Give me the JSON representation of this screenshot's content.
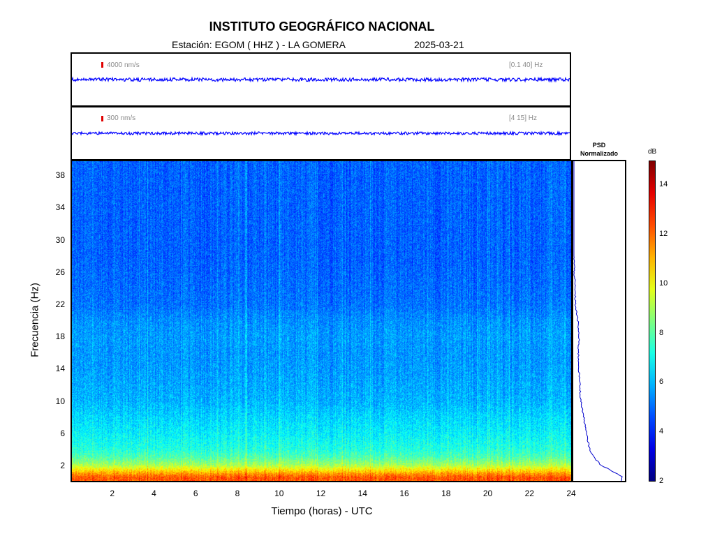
{
  "header": {
    "institution": "INSTITUTO GEOGRÁFICO NACIONAL",
    "station": "Estación:  EGOM ( HHZ ) - LA GOMERA",
    "date": "2025-03-21"
  },
  "traces": [
    {
      "scale_label": "4000 nm/s",
      "band_label": "[0.1 40] Hz",
      "color": "#0000ff"
    },
    {
      "scale_label": "300 nm/s",
      "band_label": "[4 15] Hz",
      "color": "#0000ff"
    }
  ],
  "psd": {
    "title_line1": "PSD",
    "title_line2": "Normalizado"
  },
  "colorbar": {
    "unit": "dB",
    "ticks": [
      "2",
      "4",
      "6",
      "8",
      "10",
      "12",
      "14"
    ],
    "colormap": "jet"
  },
  "chart_data": {
    "type": "heatmap",
    "title": "INSTITUTO GEOGRÁFICO NACIONAL",
    "xlabel": "Tiempo (horas) - UTC",
    "ylabel": "Frecuencia  (Hz)",
    "xlim": [
      0,
      24
    ],
    "ylim": [
      0,
      40
    ],
    "x_ticks": [
      "2",
      "4",
      "6",
      "8",
      "10",
      "12",
      "14",
      "16",
      "18",
      "20",
      "22",
      "24"
    ],
    "y_ticks": [
      "2",
      "6",
      "10",
      "14",
      "18",
      "22",
      "26",
      "30",
      "34",
      "38"
    ],
    "color_range_db": [
      2,
      15
    ],
    "psd_profile": {
      "frequency_hz": [
        0.5,
        1,
        2,
        3,
        4,
        6,
        8,
        10,
        12,
        14,
        16,
        18,
        20,
        22,
        24,
        26,
        28,
        30,
        32,
        34,
        36,
        38,
        40
      ],
      "normalized_power": [
        0.98,
        0.85,
        0.55,
        0.4,
        0.32,
        0.25,
        0.2,
        0.14,
        0.12,
        0.1,
        0.09,
        0.1,
        0.08,
        0.03,
        0.02,
        0.01,
        0.0,
        0.0,
        0.0,
        0.0,
        0.0,
        0.0,
        0.0
      ]
    }
  }
}
